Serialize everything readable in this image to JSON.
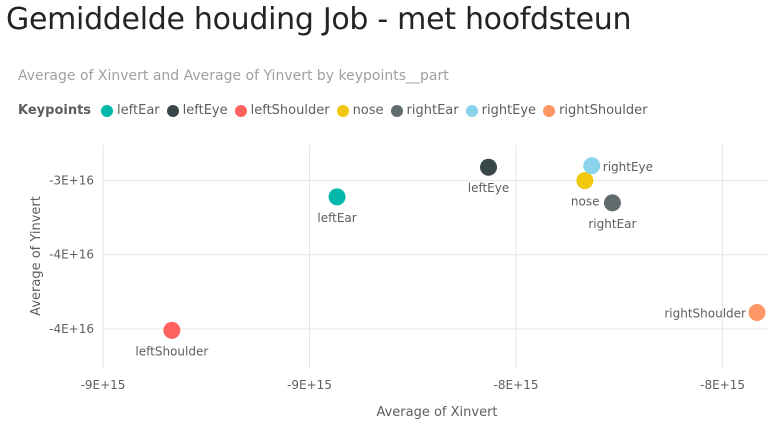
{
  "page": {
    "title": "Gemiddelde houding Job - met hoofdsteun"
  },
  "chart_data": {
    "type": "scatter",
    "title": "Average of Xinvert and Average of Yinvert by keypoints__part",
    "xlabel": "Average of Xinvert",
    "ylabel": "Average of Yinvert",
    "legend_title": "Keypoints",
    "legend_position": "top-left",
    "grid": true,
    "x_ticks": [
      "-9E+15",
      "-9E+15",
      "-8E+15",
      "-8E+15"
    ],
    "y_ticks": [
      "-3E+16",
      "-4E+16",
      "-4E+16"
    ],
    "x_tick_values": [
      -9200000000000000.0,
      -8900000000000000.0,
      -8600000000000000.0,
      -8300000000000000.0
    ],
    "y_tick_values": [
      -3e+16,
      -3.5e+16,
      -4e+16
    ],
    "xlim": [
      -9200000000000000.0,
      -8234000000000000.0
    ],
    "ylim": [
      -4.264e+16,
      -2.76e+16
    ],
    "series": [
      {
        "name": "leftEar",
        "color": "#01B8AA",
        "x": -8860000000000000.0,
        "y": -3.11e+16,
        "label_pos": "below"
      },
      {
        "name": "leftEye",
        "color": "#374649",
        "x": -8640000000000000.0,
        "y": -2.91e+16,
        "label_pos": "below"
      },
      {
        "name": "leftShoulder",
        "color": "#FD625E",
        "x": -9100000000000000.0,
        "y": -4.01e+16,
        "label_pos": "below"
      },
      {
        "name": "nose",
        "color": "#F2C80F",
        "x": -8500000000000000.0,
        "y": -3e+16,
        "label_pos": "below-left"
      },
      {
        "name": "rightEar",
        "color": "#5F6B6D",
        "x": -8460000000000000.0,
        "y": -3.15e+16,
        "label_pos": "below"
      },
      {
        "name": "rightEye",
        "color": "#8AD4EB",
        "x": -8490000000000000.0,
        "y": -2.9e+16,
        "label_pos": "right"
      },
      {
        "name": "rightShoulder",
        "color": "#FE9666",
        "x": -8250000000000000.0,
        "y": -3.89e+16,
        "label_pos": "left"
      }
    ]
  }
}
